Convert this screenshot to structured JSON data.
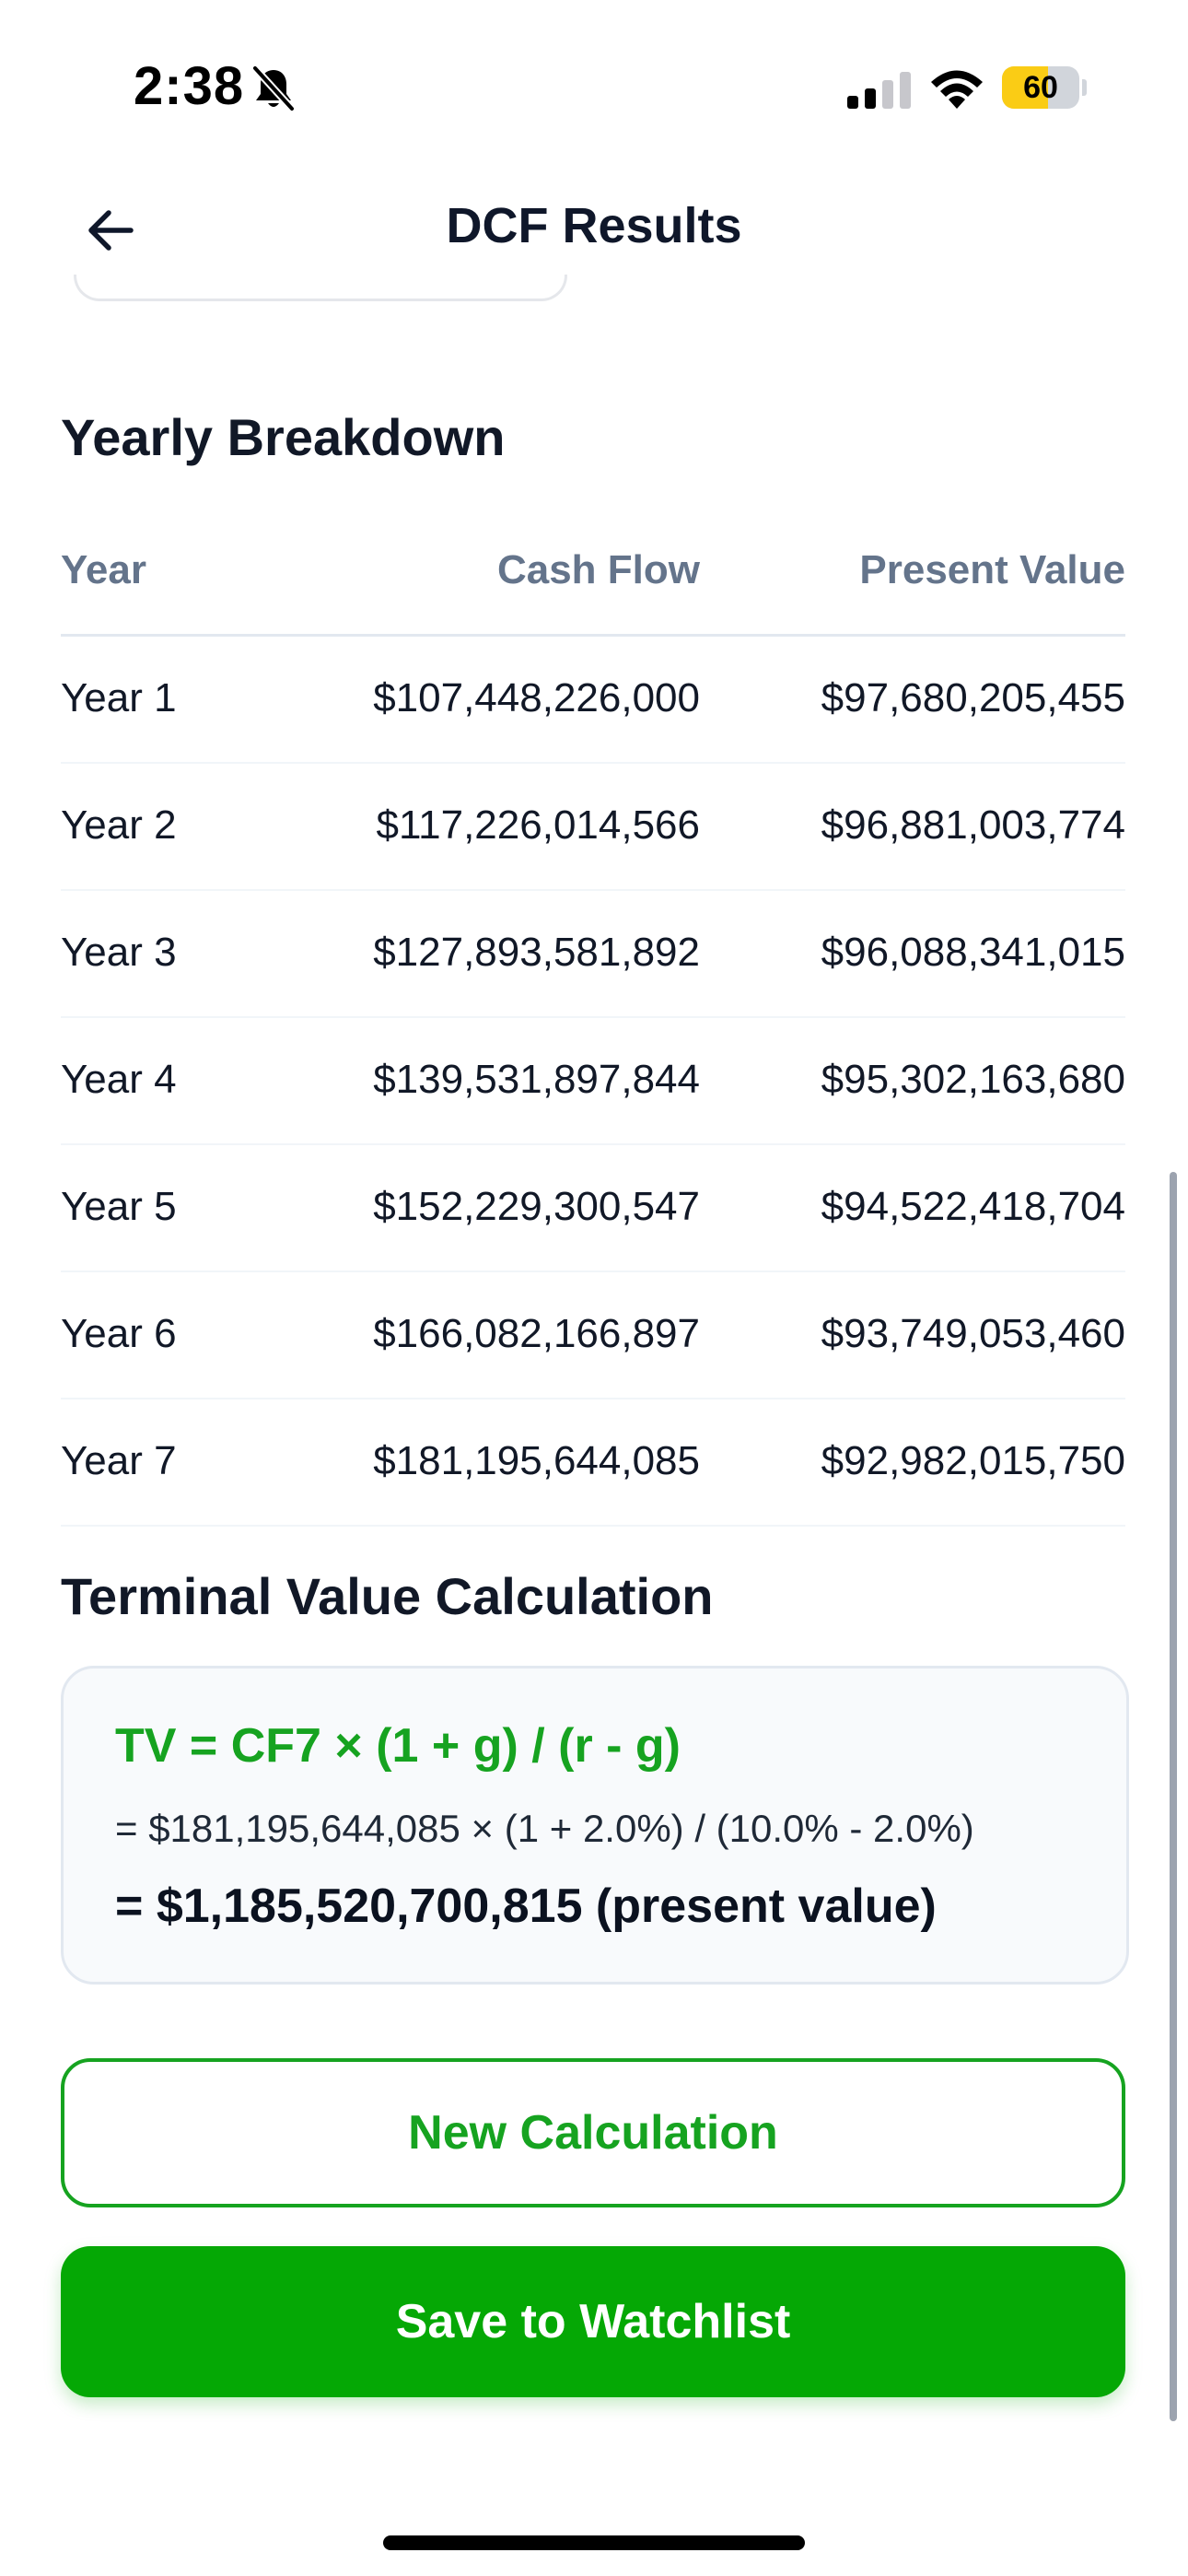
{
  "status_bar": {
    "time": "2:38",
    "battery_level": "60",
    "battery_fraction": 0.6,
    "battery_color": "#facc15",
    "icons": [
      "bell-slash-icon",
      "cellular-signal-icon",
      "wifi-icon",
      "battery-icon"
    ]
  },
  "header": {
    "title": "DCF Results",
    "back_icon": "arrow-left-icon"
  },
  "yearly_breakdown": {
    "title": "Yearly Breakdown",
    "columns": [
      "Year",
      "Cash Flow",
      "Present Value"
    ],
    "rows": [
      {
        "year": "Year 1",
        "cash_flow": "$107,448,226,000",
        "present_value": "$97,680,205,455"
      },
      {
        "year": "Year 2",
        "cash_flow": "$117,226,014,566",
        "present_value": "$96,881,003,774"
      },
      {
        "year": "Year 3",
        "cash_flow": "$127,893,581,892",
        "present_value": "$96,088,341,015"
      },
      {
        "year": "Year 4",
        "cash_flow": "$139,531,897,844",
        "present_value": "$95,302,163,680"
      },
      {
        "year": "Year 5",
        "cash_flow": "$152,229,300,547",
        "present_value": "$94,522,418,704"
      },
      {
        "year": "Year 6",
        "cash_flow": "$166,082,166,897",
        "present_value": "$93,749,053,460"
      },
      {
        "year": "Year 7",
        "cash_flow": "$181,195,644,085",
        "present_value": "$92,982,015,750"
      }
    ]
  },
  "terminal_value": {
    "title": "Terminal Value Calculation",
    "formula": "TV = CF7 × (1 + g) / (r - g)",
    "substitution": "= $181,195,644,085 × (1 + 2.0%) / (10.0% - 2.0%)",
    "result": "= $1,185,520,700,815 (present value)"
  },
  "actions": {
    "new_calculation": "New Calculation",
    "save_to_watchlist": "Save to Watchlist"
  },
  "colors": {
    "accent_green": "#16a320",
    "primary_button": "#05a805",
    "header_text": "#64748b"
  }
}
